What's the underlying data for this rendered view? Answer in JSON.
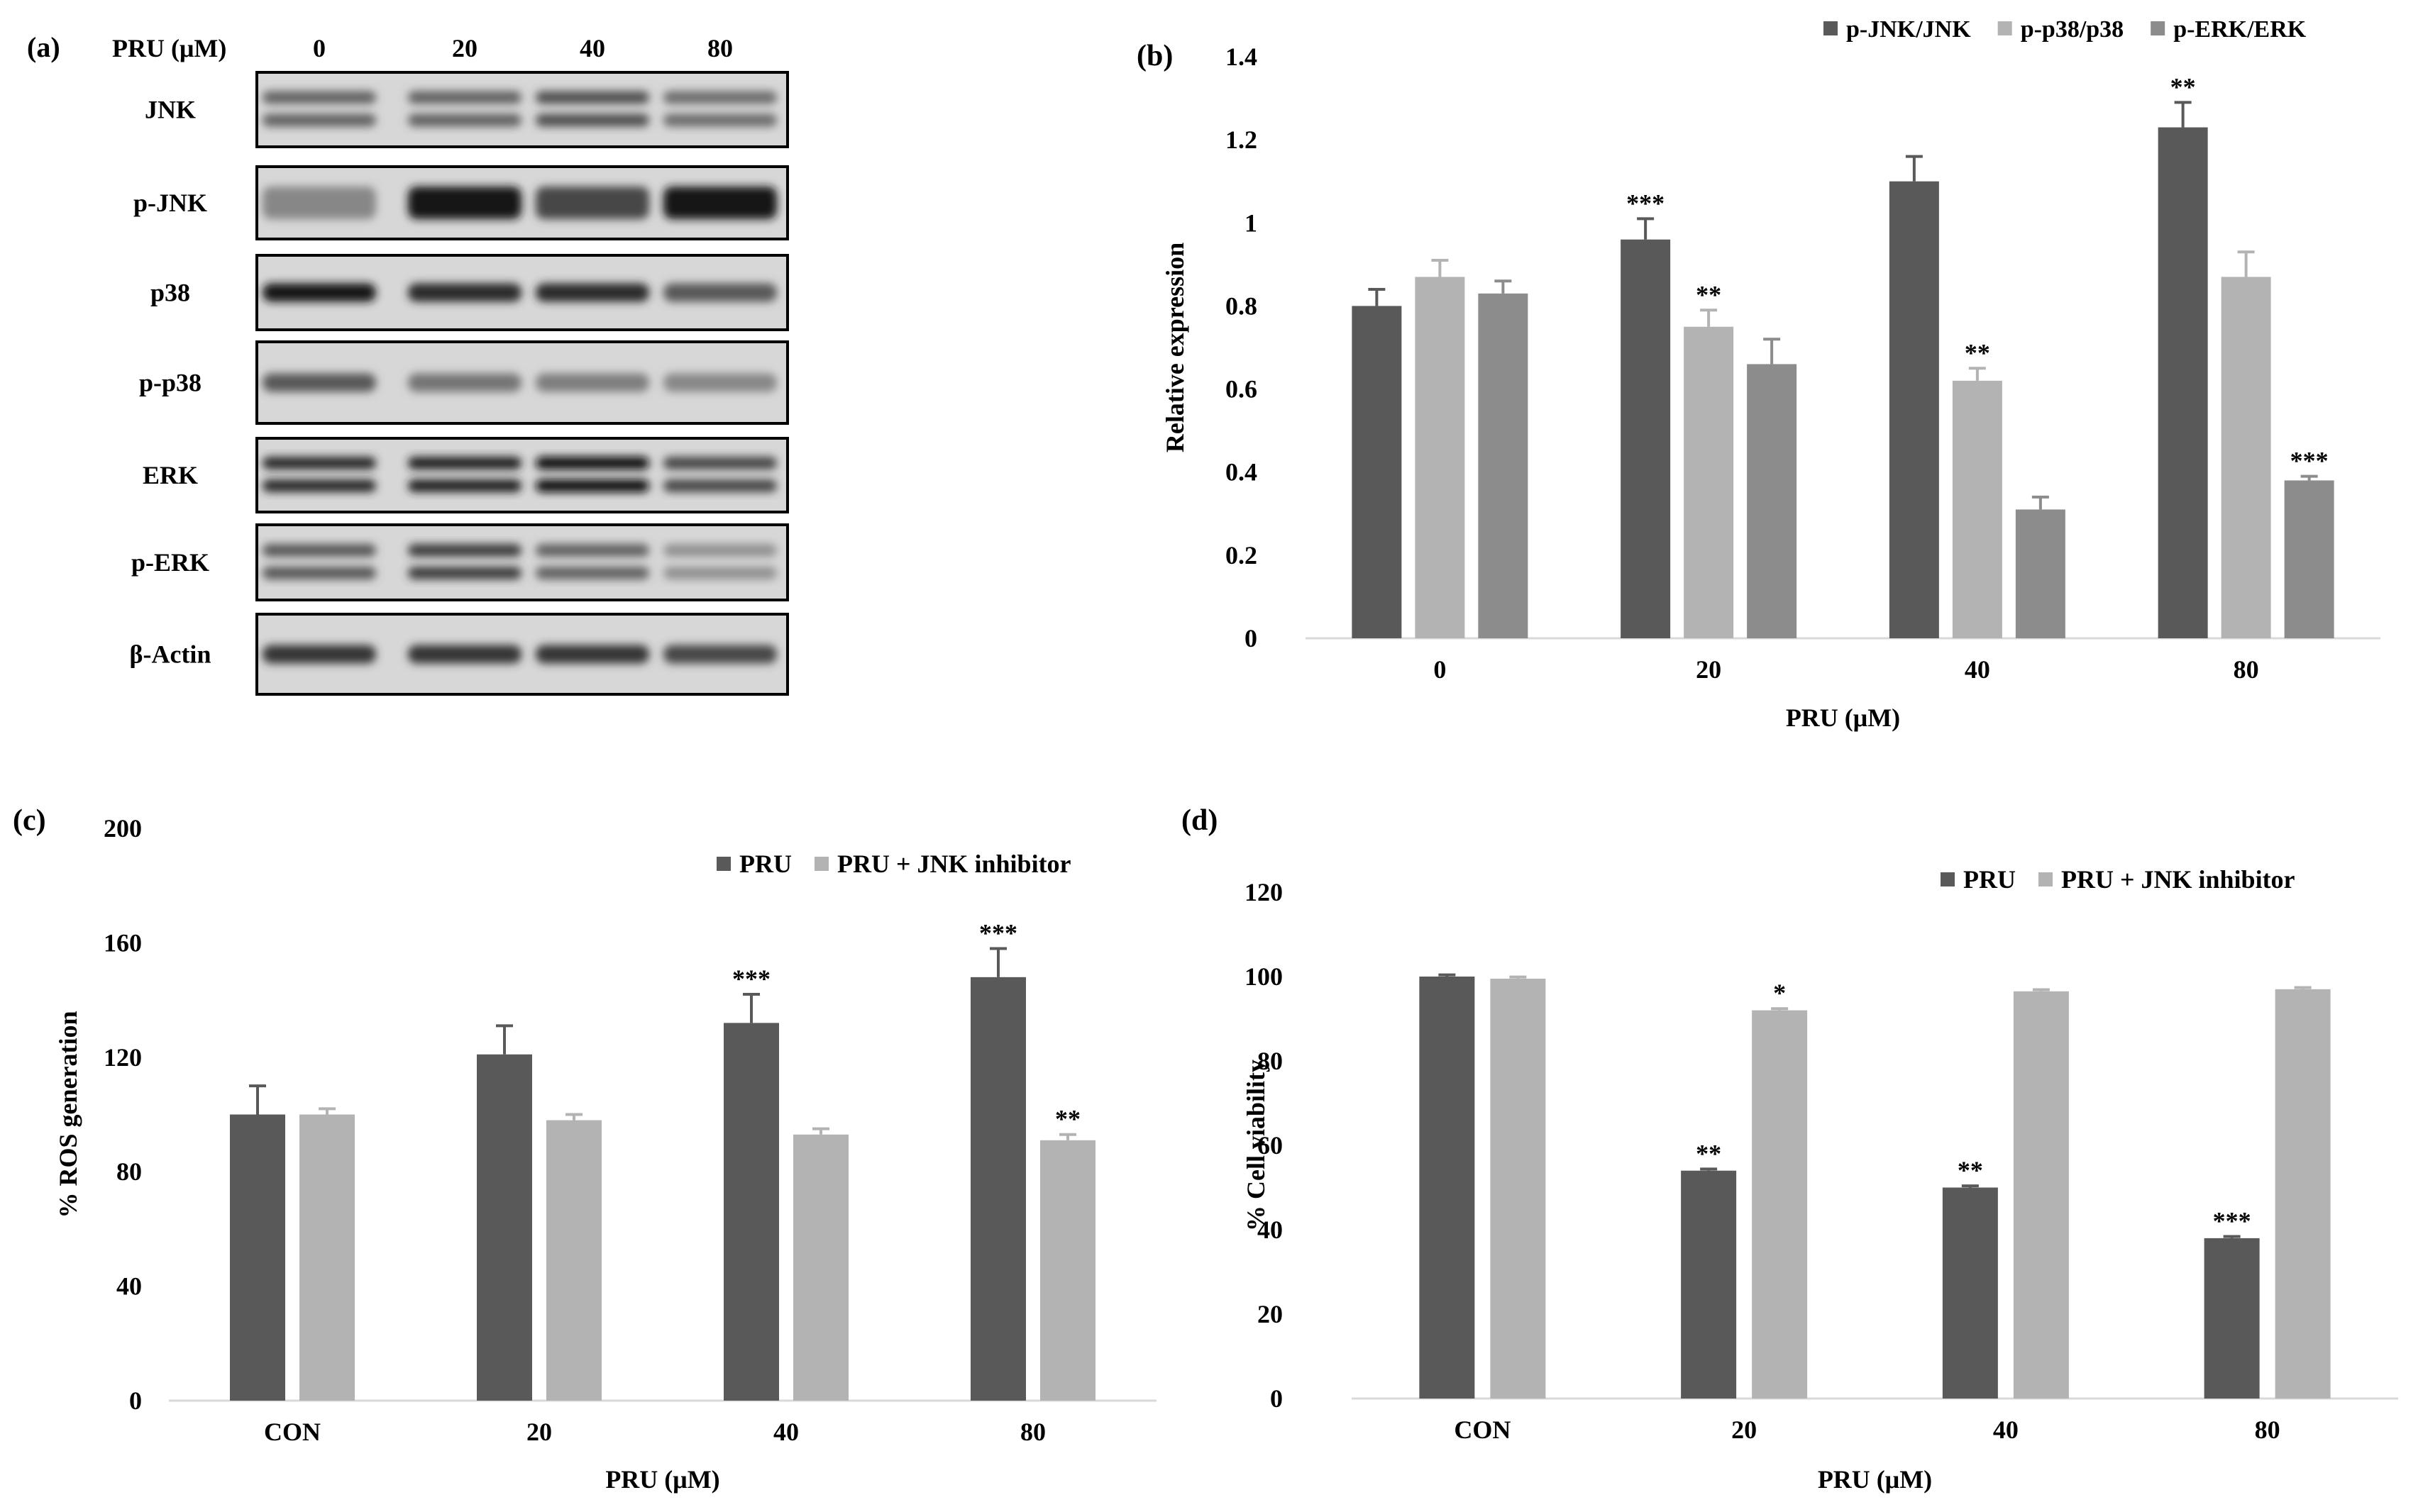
{
  "panels": {
    "a": {
      "label": "(a)",
      "header_label": "PRU (μM)",
      "lanes": [
        "0",
        "20",
        "40",
        "80"
      ],
      "rows": [
        "JNK",
        "p-JNK",
        "p38",
        "p-p38",
        "ERK",
        "p-ERK",
        "β-Actin"
      ]
    },
    "b": {
      "label": "(b)"
    },
    "c": {
      "label": "(c)"
    },
    "d": {
      "label": "(d)"
    }
  },
  "colors": {
    "dark": "#595959",
    "light": "#b3b3b3",
    "medium": "#8c8c8c",
    "axis": "#d9d9d9"
  },
  "chart_data": [
    {
      "type": "bar",
      "panel": "b",
      "categories": [
        "0",
        "20",
        "40",
        "80"
      ],
      "series": [
        {
          "name": "p-JNK/JNK",
          "color": "#595959",
          "values": [
            0.8,
            0.96,
            1.1,
            1.23
          ],
          "errors": [
            0.04,
            0.05,
            0.06,
            0.06
          ],
          "annotations": [
            "",
            "***",
            "",
            "**"
          ]
        },
        {
          "name": "p-p38/p38",
          "color": "#b3b3b3",
          "values": [
            0.87,
            0.75,
            0.62,
            0.87
          ],
          "errors": [
            0.04,
            0.04,
            0.03,
            0.06
          ],
          "annotations": [
            "",
            "**",
            "**",
            ""
          ]
        },
        {
          "name": "p-ERK/ERK",
          "color": "#8c8c8c",
          "values": [
            0.83,
            0.66,
            0.31,
            0.38
          ],
          "errors": [
            0.03,
            0.06,
            0.03,
            0.01
          ],
          "annotations": [
            "",
            "",
            "",
            "***"
          ]
        }
      ],
      "yticks": [
        "0",
        "0.2",
        "0.4",
        "0.6",
        "0.8",
        "1",
        "1.2",
        "1.4"
      ],
      "ylim": [
        0,
        1.4
      ],
      "xlabel": "PRU (μM)",
      "ylabel": "Relative expression",
      "legend": "top-right",
      "grid": false
    },
    {
      "type": "bar",
      "panel": "c",
      "categories": [
        "CON",
        "20",
        "40",
        "80"
      ],
      "series": [
        {
          "name": "PRU",
          "color": "#595959",
          "values": [
            100,
            121,
            132,
            148
          ],
          "errors": [
            10,
            10,
            10,
            10
          ],
          "annotations": [
            "",
            "",
            "***",
            "***"
          ]
        },
        {
          "name": "PRU + JNK inhibitor",
          "color": "#b3b3b3",
          "values": [
            100,
            98,
            93,
            91
          ],
          "errors": [
            2,
            2,
            2,
            2
          ],
          "annotations": [
            "",
            "",
            "",
            "**"
          ]
        }
      ],
      "yticks": [
        "0",
        "40",
        "80",
        "120",
        "160",
        "200"
      ],
      "ylim": [
        0,
        200
      ],
      "xlabel": "PRU (μM)",
      "ylabel": "% ROS generation",
      "legend": "top-right",
      "grid": false
    },
    {
      "type": "bar",
      "panel": "d",
      "categories": [
        "CON",
        "20",
        "40",
        "80"
      ],
      "series": [
        {
          "name": "PRU",
          "color": "#595959",
          "values": [
            100,
            54,
            50,
            38
          ],
          "errors": [
            0.4,
            0.4,
            0.4,
            0.4
          ],
          "annotations": [
            "",
            "**",
            "**",
            "***"
          ]
        },
        {
          "name": "PRU + JNK inhibitor",
          "color": "#b3b3b3",
          "values": [
            99.5,
            92,
            96.5,
            97
          ],
          "errors": [
            0.4,
            0.4,
            0.4,
            0.4
          ],
          "annotations": [
            "",
            "*",
            "",
            ""
          ]
        }
      ],
      "yticks": [
        "0",
        "20",
        "40",
        "60",
        "80",
        "100",
        "120"
      ],
      "ylim": [
        0,
        120
      ],
      "xlabel": "PRU (μM)",
      "ylabel": "% Cell viability",
      "legend": "top-right",
      "grid": false
    }
  ]
}
